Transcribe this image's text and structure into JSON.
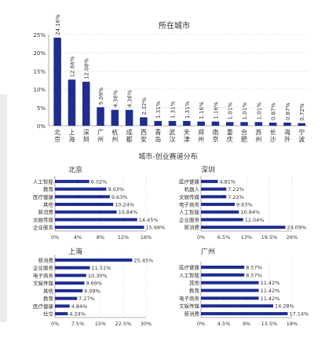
{
  "chart_data": [
    {
      "type": "bar",
      "title": "所在城市",
      "categories": [
        "北京",
        "上海",
        "深圳",
        "广州",
        "杭州",
        "成都",
        "西安",
        "青岛",
        "武汉",
        "天津",
        "郑州",
        "南京",
        "重庆",
        "合肥",
        "苏州",
        "长沙",
        "海外",
        "宁波"
      ],
      "values": [
        24.16,
        12.66,
        12.08,
        5.09,
        4.36,
        4.36,
        2.32,
        1.31,
        1.31,
        1.31,
        1.16,
        1.16,
        1.01,
        1.01,
        1.01,
        0.87,
        0.87,
        0.72
      ],
      "value_labels": [
        "24.16%",
        "12.66%",
        "12.08%",
        "5.09%",
        "4.36%",
        "4.36%",
        "2.32%",
        "1.31%",
        "1.31%",
        "1.31%",
        "1.16%",
        "1.16%",
        "1.01%",
        "1.01%",
        "1.01%",
        "0.87%",
        "0.87%",
        "0.72%"
      ],
      "yticks": [
        "0%",
        "5%",
        "10%",
        "15%",
        "20%",
        "25%"
      ],
      "ylim": [
        0,
        25
      ],
      "color": "#1e2d8f"
    },
    {
      "type": "bar",
      "orientation": "horizontal",
      "heading": "城市-创业赛道分布",
      "title": "北京",
      "categories": [
        "人工智能",
        "教育",
        "医疗健康",
        "其他",
        "新消费",
        "文娱传媒",
        "企业服务"
      ],
      "values": [
        6.02,
        9.03,
        9.63,
        10.24,
        10.84,
        14.45,
        15.66
      ],
      "value_labels": [
        "6.02%",
        "9.03%",
        "9.63%",
        "10.24%",
        "10.84%",
        "14.45%",
        "15.66%"
      ],
      "xticks": [
        "0%",
        "4%",
        "8%",
        "12%",
        "16%"
      ],
      "xlim": [
        0,
        16
      ],
      "color": "#1e2d8f"
    },
    {
      "type": "bar",
      "orientation": "horizontal",
      "title": "深圳",
      "categories": [
        "医疗健康",
        "机器人",
        "文娱传媒",
        "电子商务",
        "人工智能",
        "企业服务",
        "新消费"
      ],
      "values": [
        4.81,
        7.22,
        7.22,
        9.63,
        10.84,
        12.04,
        24.09
      ],
      "value_labels": [
        "4.81%",
        "7.22%",
        "7.22%",
        "9.63%",
        "10.84%",
        "12.04%",
        "24.09%"
      ],
      "xticks": [
        "0%",
        "6.5%",
        "13%",
        "19.5%",
        "26%"
      ],
      "xlim": [
        0,
        26
      ],
      "color": "#1e2d8f"
    },
    {
      "type": "bar",
      "orientation": "horizontal",
      "title": "上海",
      "categories": [
        "新消费",
        "企业服务",
        "电子商务",
        "文娱传媒",
        "其他",
        "教育",
        "医疗健康",
        "社交"
      ],
      "values": [
        25.45,
        11.51,
        10.3,
        9.69,
        9.09,
        7.27,
        4.84,
        4.24
      ],
      "value_labels": [
        "25.45%",
        "11.51%",
        "10.30%",
        "9.69%",
        "9.09%",
        "7.27%",
        "4.84%",
        "4.24%"
      ],
      "xticks": [
        "0%",
        "7.5%",
        "15%",
        "22.5%",
        "30%"
      ],
      "xlim": [
        0,
        30
      ],
      "color": "#1e2d8f"
    },
    {
      "type": "bar",
      "orientation": "horizontal",
      "title": "广州",
      "categories": [
        "医疗健康",
        "人工智能",
        "其他",
        "教育",
        "电子商务",
        "文娱传媒",
        "新消费"
      ],
      "values": [
        8.57,
        8.57,
        11.42,
        11.42,
        11.42,
        14.28,
        17.14
      ],
      "value_labels": [
        "8.57%",
        "8.57%",
        "11.42%",
        "11.42%",
        "11.42%",
        "14.28%",
        "17.14%"
      ],
      "xticks": [
        "0%",
        "4.5%",
        "9%",
        "13.5%",
        "18%"
      ],
      "xlim": [
        0,
        18
      ],
      "color": "#1e2d8f"
    }
  ]
}
